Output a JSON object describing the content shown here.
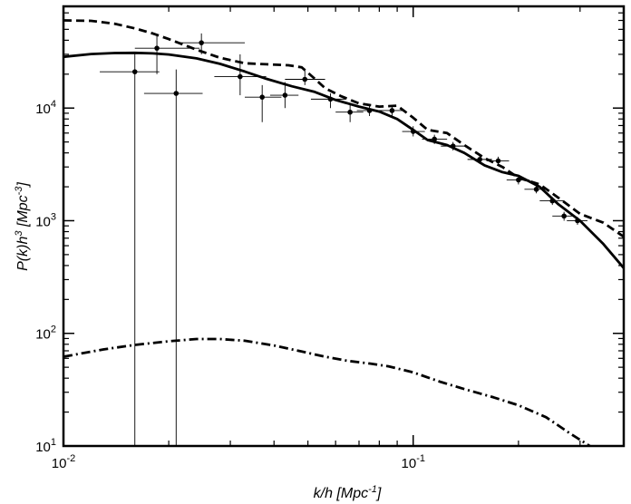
{
  "chart_data": {
    "type": "line",
    "xlabel": "k/h [Mpc",
    "xlabel_sup": "-1",
    "xlabel_end": "]",
    "ylabel": "P(k)h",
    "ylabel_sup1": "3",
    "ylabel_mid": " [Mpc",
    "ylabel_sup2": "-3",
    "ylabel_end": "]",
    "x_scale": "log",
    "y_scale": "log",
    "xlim": [
      0.01,
      0.4
    ],
    "ylim": [
      10,
      80000
    ],
    "x_ticks": [
      {
        "value": 0.01,
        "base": "10",
        "exp": "-2"
      },
      {
        "value": 0.1,
        "base": "10",
        "exp": "-1"
      }
    ],
    "y_ticks": [
      {
        "value": 10,
        "base": "10",
        "exp": "1"
      },
      {
        "value": 100,
        "base": "10",
        "exp": "2"
      },
      {
        "value": 1000,
        "base": "10",
        "exp": "3"
      },
      {
        "value": 10000,
        "base": "10",
        "exp": "4"
      }
    ],
    "series": [
      {
        "style": "solid",
        "x": [
          0.01,
          0.012,
          0.014,
          0.016,
          0.018,
          0.02,
          0.024,
          0.028,
          0.033,
          0.038,
          0.045,
          0.052,
          0.06,
          0.07,
          0.08,
          0.09,
          0.1,
          0.11,
          0.125,
          0.14,
          0.16,
          0.18,
          0.2,
          0.23,
          0.26,
          0.3,
          0.35,
          0.4
        ],
        "y": [
          28500,
          30200,
          30800,
          30900,
          30600,
          29900,
          27600,
          24700,
          21100,
          18200,
          15600,
          14000,
          11800,
          10300,
          9300,
          8000,
          6400,
          5200,
          4700,
          4000,
          3100,
          2700,
          2500,
          2000,
          1400,
          1000,
          620,
          380
        ]
      },
      {
        "style": "dashed",
        "x": [
          0.01,
          0.012,
          0.014,
          0.016,
          0.018,
          0.02,
          0.024,
          0.028,
          0.033,
          0.038,
          0.044,
          0.048,
          0.052,
          0.056,
          0.062,
          0.07,
          0.08,
          0.09,
          0.1,
          0.11,
          0.125,
          0.14,
          0.16,
          0.18,
          0.2,
          0.23,
          0.26,
          0.3,
          0.35,
          0.4
        ],
        "y": [
          60000,
          59500,
          56000,
          51000,
          46000,
          41000,
          33000,
          28000,
          25000,
          24500,
          24000,
          23000,
          18500,
          15000,
          12800,
          11000,
          10300,
          10500,
          8200,
          6400,
          6000,
          4700,
          3600,
          3000,
          2400,
          2100,
          1600,
          1150,
          960,
          720
        ]
      },
      {
        "style": "dash-dot",
        "x": [
          0.01,
          0.013,
          0.016,
          0.02,
          0.024,
          0.028,
          0.033,
          0.04,
          0.048,
          0.056,
          0.065,
          0.075,
          0.085,
          0.1,
          0.12,
          0.14,
          0.17,
          0.2,
          0.24,
          0.28,
          0.32
        ],
        "y": [
          62,
          72,
          79,
          85,
          89,
          89,
          86,
          78,
          69,
          62,
          57,
          54,
          51,
          45,
          37,
          32,
          27,
          23,
          18,
          13,
          10
        ]
      }
    ],
    "data_points": [
      {
        "x": 0.016,
        "y": 21000,
        "xlo": 0.0127,
        "xhi": 0.0188,
        "ylo": 10,
        "yhi": 31000
      },
      {
        "x": 0.0185,
        "y": 34000,
        "xlo": 0.016,
        "xhi": 0.0245,
        "ylo": 20000,
        "yhi": 45000
      },
      {
        "x": 0.021,
        "y": 13500,
        "xlo": 0.017,
        "xhi": 0.025,
        "ylo": 10,
        "yhi": 22000
      },
      {
        "x": 0.0248,
        "y": 38000,
        "xlo": 0.021,
        "xhi": 0.033,
        "ylo": 30000,
        "yhi": 46000
      },
      {
        "x": 0.032,
        "y": 19000,
        "xlo": 0.027,
        "xhi": 0.038,
        "ylo": 13000,
        "yhi": 30000
      },
      {
        "x": 0.037,
        "y": 12500,
        "xlo": 0.033,
        "xhi": 0.042,
        "ylo": 7500,
        "yhi": 16000
      },
      {
        "x": 0.043,
        "y": 13000,
        "xlo": 0.039,
        "xhi": 0.047,
        "ylo": 10000,
        "yhi": 17000
      },
      {
        "x": 0.049,
        "y": 18000,
        "xlo": 0.043,
        "xhi": 0.056,
        "ylo": 16000,
        "yhi": 22000
      },
      {
        "x": 0.058,
        "y": 12000,
        "xlo": 0.051,
        "xhi": 0.064,
        "ylo": 10000,
        "yhi": 13500
      },
      {
        "x": 0.066,
        "y": 9200,
        "xlo": 0.06,
        "xhi": 0.072,
        "ylo": 7500,
        "yhi": 11000
      },
      {
        "x": 0.075,
        "y": 9500,
        "xlo": 0.069,
        "xhi": 0.082,
        "ylo": 8500,
        "yhi": 10500
      },
      {
        "x": 0.087,
        "y": 9500,
        "xlo": 0.08,
        "xhi": 0.095,
        "ylo": 8500,
        "yhi": 10500
      },
      {
        "x": 0.1,
        "y": 6200,
        "xlo": 0.093,
        "xhi": 0.108,
        "ylo": 5600,
        "yhi": 6900
      },
      {
        "x": 0.115,
        "y": 5300,
        "xlo": 0.106,
        "xhi": 0.125,
        "ylo": 4800,
        "yhi": 5800
      },
      {
        "x": 0.13,
        "y": 4600,
        "xlo": 0.12,
        "xhi": 0.14,
        "ylo": 4200,
        "yhi": 5000
      },
      {
        "x": 0.155,
        "y": 3500,
        "xlo": 0.143,
        "xhi": 0.168,
        "ylo": 3200,
        "yhi": 3800
      },
      {
        "x": 0.175,
        "y": 3400,
        "xlo": 0.162,
        "xhi": 0.188,
        "ylo": 3100,
        "yhi": 3700
      },
      {
        "x": 0.2,
        "y": 2300,
        "xlo": 0.185,
        "xhi": 0.215,
        "ylo": 2100,
        "yhi": 2500
      },
      {
        "x": 0.225,
        "y": 1900,
        "xlo": 0.208,
        "xhi": 0.243,
        "ylo": 1750,
        "yhi": 2050
      },
      {
        "x": 0.25,
        "y": 1500,
        "xlo": 0.23,
        "xhi": 0.27,
        "ylo": 1380,
        "yhi": 1620
      },
      {
        "x": 0.27,
        "y": 1100,
        "xlo": 0.25,
        "xhi": 0.29,
        "ylo": 1000,
        "yhi": 1200
      },
      {
        "x": 0.295,
        "y": 1000,
        "xlo": 0.275,
        "xhi": 0.315,
        "ylo": 920,
        "yhi": 1080
      }
    ]
  }
}
